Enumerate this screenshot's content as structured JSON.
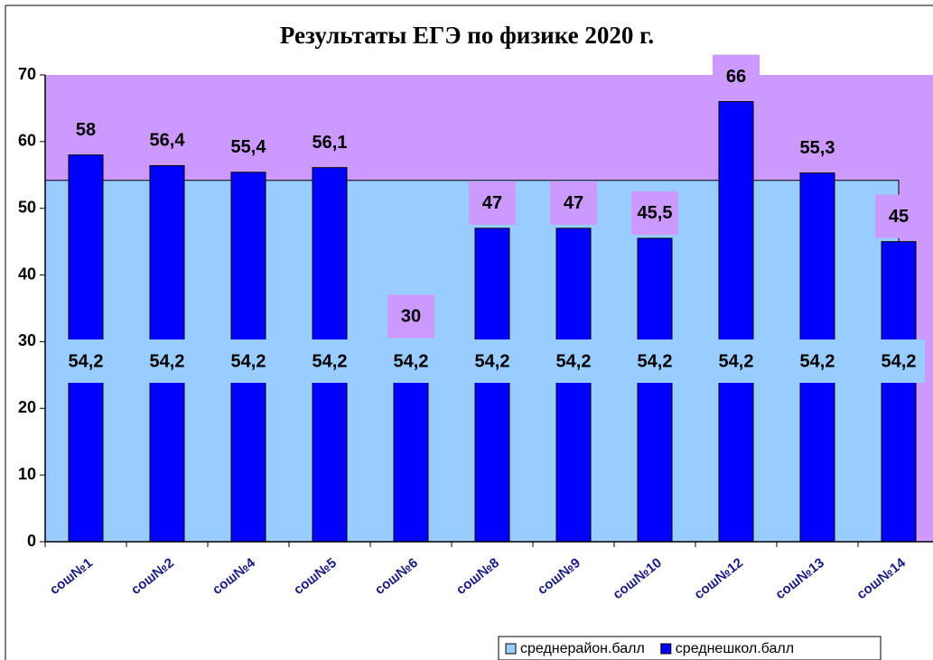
{
  "chart_data": {
    "type": "bar",
    "title": "Результаты ЕГЭ по физике 2020 г.",
    "categories": [
      "сош№1",
      "сош№2",
      "сош№4",
      "сош№5",
      "сош№6",
      "сош№8",
      "сош№9",
      "сош№10",
      "сош№12",
      "сош№13",
      "сош№14"
    ],
    "series": [
      {
        "name": "среднерайон.балл",
        "type": "area",
        "color": "#99ccff",
        "values": [
          54.2,
          54.2,
          54.2,
          54.2,
          54.2,
          54.2,
          54.2,
          54.2,
          54.2,
          54.2,
          54.2
        ],
        "value_labels": [
          "54,2",
          "54,2",
          "54,2",
          "54,2",
          "54,2",
          "54,2",
          "54,2",
          "54,2",
          "54,2",
          "54,2",
          "54,2"
        ]
      },
      {
        "name": "среднешкол.балл",
        "type": "bar",
        "color": "#0000ff",
        "values": [
          58,
          56.4,
          55.4,
          56.1,
          30,
          47,
          47,
          45.5,
          66,
          55.3,
          45
        ],
        "value_labels": [
          "58",
          "56,4",
          "55,4",
          "56,1",
          "30",
          "47",
          "47",
          "45,5",
          "66",
          "55,3",
          "45"
        ]
      }
    ],
    "ylim": [
      0,
      70
    ],
    "yticks": [
      0,
      10,
      20,
      30,
      40,
      50,
      60,
      70
    ],
    "plot_background": "#cc99ff",
    "legend": "bottom-right"
  }
}
